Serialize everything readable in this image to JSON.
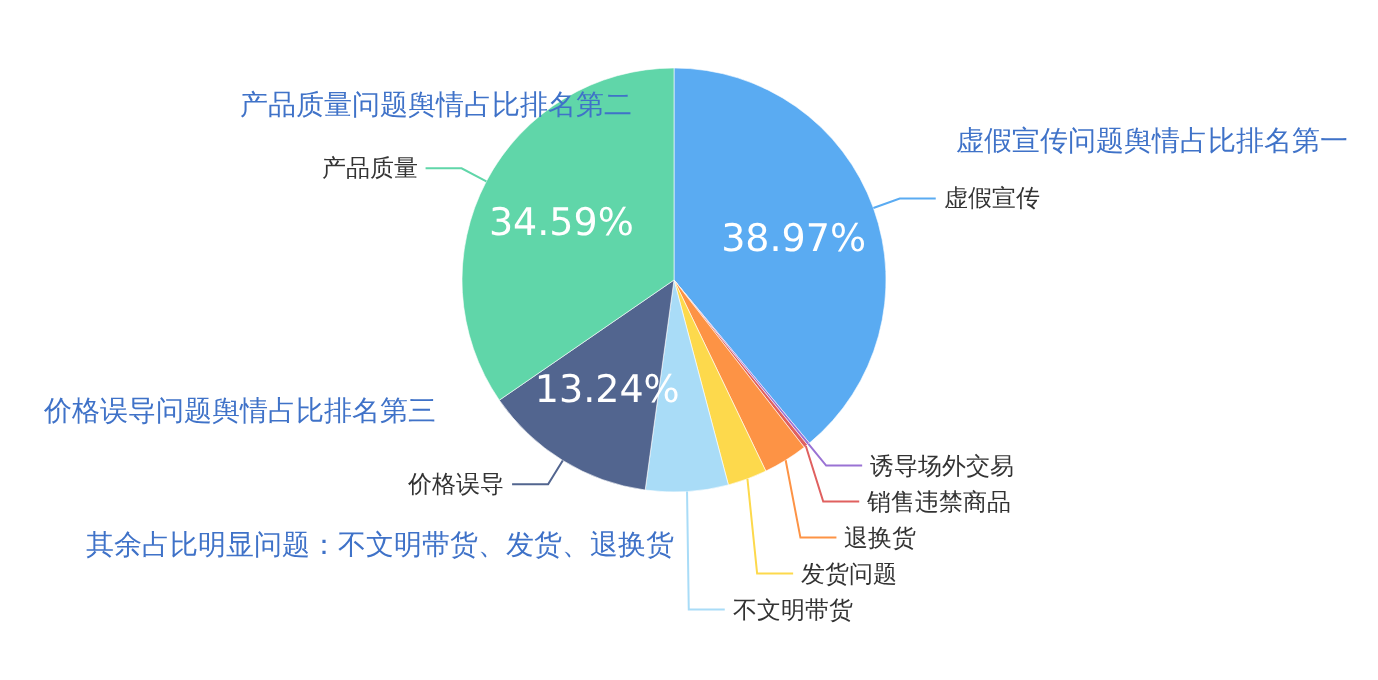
{
  "chart_data": {
    "type": "pie",
    "categories": [
      "虚假宣传",
      "诱导场外交易",
      "销售违禁商品",
      "退换货",
      "发货问题",
      "不文明带货",
      "价格误导",
      "产品质量"
    ],
    "values": [
      38.97,
      0.2,
      0.3,
      3.4,
      3.0,
      6.3,
      13.24,
      34.59
    ],
    "value_labels": [
      "38.97%",
      null,
      null,
      null,
      null,
      null,
      "13.24%",
      "34.59%"
    ],
    "colors": [
      "#5aabf2",
      "#9a72d4",
      "#e0605f",
      "#fd9345",
      "#fdd94c",
      "#a9dcf7",
      "#52658f",
      "#60d6a9"
    ],
    "annotations": [
      "虚假宣传问题舆情占比排名第一",
      "产品质量问题舆情占比排名第二",
      "价格误导问题舆情占比排名第三",
      "其余占比明显问题：不文明带货、发货、退换货"
    ]
  }
}
